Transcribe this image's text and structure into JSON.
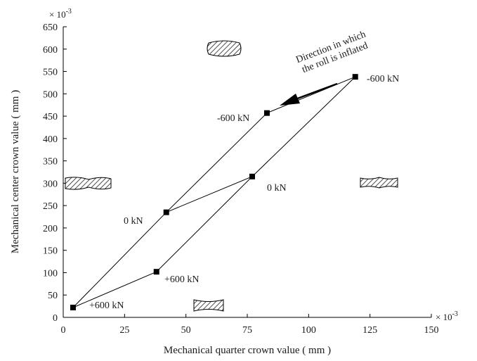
{
  "chart_data": {
    "type": "line",
    "xlabel": "Mechanical quarter crown value ( mm )",
    "ylabel": "Mechanical center crown value ( mm )",
    "x_multiplier": "× 10",
    "y_multiplier": "× 10",
    "multiplier_exponent": "-3",
    "xlim": [
      0,
      150
    ],
    "ylim": [
      0,
      650
    ],
    "x_ticks": [
      0,
      25,
      50,
      75,
      100,
      125,
      150
    ],
    "y_ticks": [
      0,
      50,
      100,
      150,
      200,
      250,
      300,
      350,
      400,
      450,
      500,
      550,
      600,
      650
    ],
    "grid": false,
    "series": [
      {
        "points": [
          {
            "x": 4,
            "y": 22
          },
          {
            "x": 42,
            "y": 235
          },
          {
            "x": 83,
            "y": 457
          },
          {
            "x": 119,
            "y": 538
          },
          {
            "x": 77,
            "y": 315
          },
          {
            "x": 38,
            "y": 102
          },
          {
            "x": 4,
            "y": 22
          }
        ]
      },
      {
        "points": [
          {
            "x": 42,
            "y": 235
          },
          {
            "x": 77,
            "y": 315
          }
        ]
      }
    ],
    "point_labels": [
      {
        "text": "-600 kN",
        "x": 119,
        "y": 538
      },
      {
        "text": "-600 kN",
        "x": 83,
        "y": 457
      },
      {
        "text": "0 kN",
        "x": 77,
        "y": 315
      },
      {
        "text": "0 kN",
        "x": 42,
        "y": 235
      },
      {
        "text": "+600 kN",
        "x": 38,
        "y": 102
      },
      {
        "text": "+600 kN",
        "x": 4,
        "y": 22
      }
    ],
    "arrow_annotation": {
      "line1": "Direction in which",
      "line2": "the roll is inflated"
    },
    "roll_shape_icons": [
      "convex-roll-icon",
      "concave-roll-icon",
      "double-wave-roll-icon",
      "m-wave-roll-icon"
    ]
  }
}
